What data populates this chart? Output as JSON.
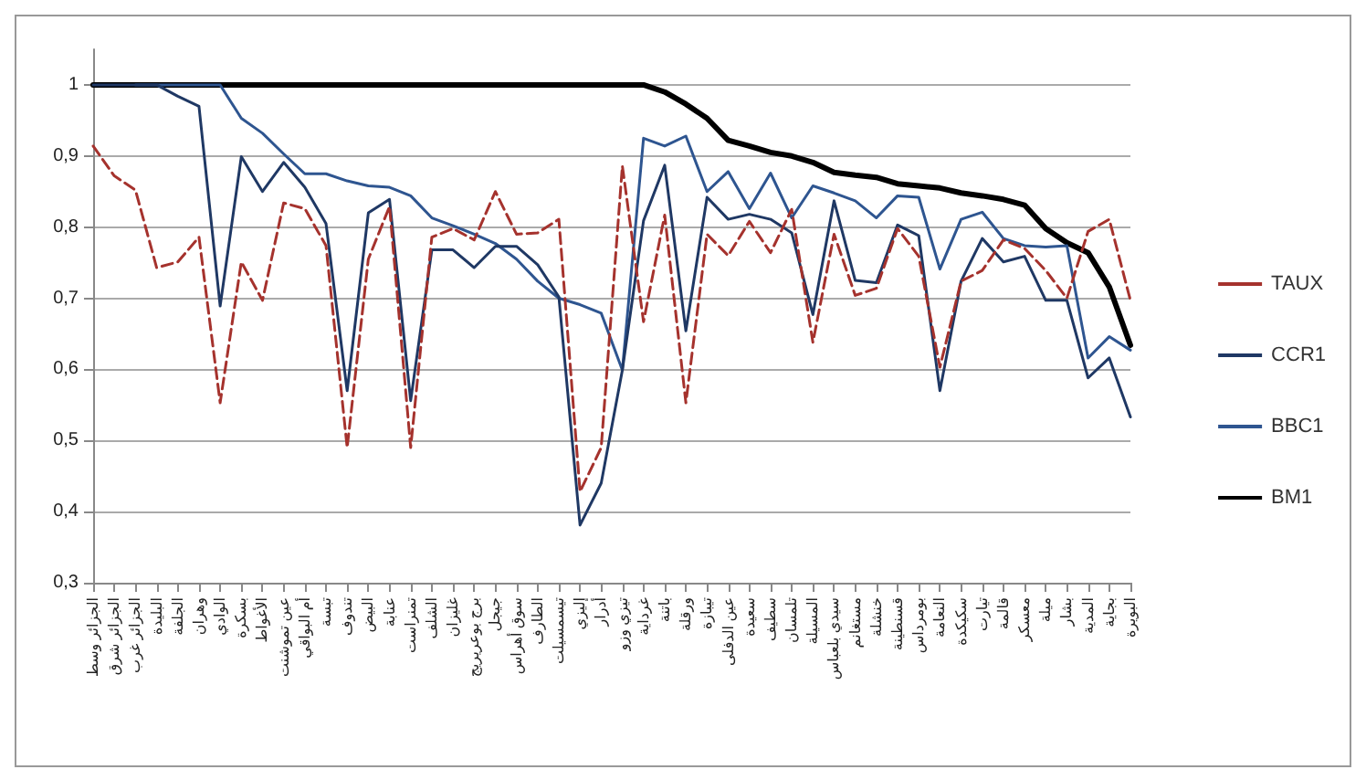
{
  "chart_data": {
    "type": "line",
    "categories": [
      "الجزائر وسط",
      "الجزائر شرق",
      "الجزائر غرب",
      "البليدة",
      "الجلفة",
      "وهران",
      "الوادي",
      "بسكرة",
      "الأغواط",
      "عين تموشنت",
      "أم البواقي",
      "تبسة",
      "تندوف",
      "البيض",
      "عنابة",
      "تمنراست",
      "الشلف",
      "غليزان",
      "برج بوعريريج",
      "جيجل",
      "سوق أهراس",
      "الطارف",
      "تيسمسيلت",
      "إليزي",
      "أدرار",
      "تيزي وزو",
      "غرداية",
      "باتنة",
      "ورقلة",
      "تيبازة",
      "عين الدفلى",
      "سعيدة",
      "سطيف",
      "تلمسان",
      "المسيلة",
      "سيدي بلعباس",
      "مستغانم",
      "خنشلة",
      "قسنطينة",
      "بومرداس",
      "النعامة",
      "سكيكدة",
      "تيارت",
      "قالمة",
      "معسكر",
      "ميلة",
      "بشار",
      "المدية",
      "بجاية",
      "البويرة"
    ],
    "series": [
      {
        "name": "TAUX",
        "color": "#a5322d",
        "line_style": "dashed",
        "values": [
          0.914,
          0.872,
          0.852,
          0.743,
          0.751,
          0.786,
          0.553,
          0.751,
          0.697,
          0.834,
          0.826,
          0.774,
          0.49,
          0.755,
          0.829,
          0.49,
          0.786,
          0.798,
          0.782,
          0.85,
          0.79,
          0.792,
          0.811,
          0.428,
          0.49,
          0.886,
          0.667,
          0.817,
          0.553,
          0.79,
          0.76,
          0.808,
          0.764,
          0.825,
          0.638,
          0.79,
          0.704,
          0.714,
          0.798,
          0.759,
          0.603,
          0.724,
          0.739,
          0.782,
          0.77,
          0.739,
          0.7,
          0.794,
          0.811,
          0.697
        ]
      },
      {
        "name": "CCR1",
        "color": "#1f3864",
        "values": [
          1,
          1,
          1,
          1,
          0.984,
          0.97,
          0.689,
          0.899,
          0.85,
          0.891,
          0.856,
          0.805,
          0.57,
          0.82,
          0.839,
          0.556,
          0.768,
          0.768,
          0.743,
          0.773,
          0.773,
          0.747,
          0.702,
          0.381,
          0.44,
          0.599,
          0.809,
          0.887,
          0.654,
          0.842,
          0.811,
          0.818,
          0.811,
          0.792,
          0.677,
          0.837,
          0.725,
          0.722,
          0.803,
          0.788,
          0.57,
          0.724,
          0.784,
          0.751,
          0.759,
          0.697,
          0.697,
          0.588,
          0.616,
          0.533
        ]
      },
      {
        "name": "BBC1",
        "color": "#2e5590",
        "values": [
          null,
          null,
          1,
          1,
          1,
          1,
          1,
          0.953,
          0.932,
          0.903,
          0.875,
          0.875,
          0.865,
          0.858,
          0.856,
          0.844,
          0.813,
          0.802,
          0.79,
          0.777,
          0.755,
          0.724,
          0.7,
          0.691,
          0.679,
          0.599,
          0.925,
          0.914,
          0.928,
          0.85,
          0.878,
          0.826,
          0.876,
          0.813,
          0.858,
          0.848,
          0.837,
          0.813,
          0.844,
          0.842,
          0.741,
          0.811,
          0.821,
          0.784,
          0.774,
          0.772,
          0.774,
          0.616,
          0.646,
          0.627
        ]
      },
      {
        "name": "BM1",
        "color": "#000000",
        "values": [
          1,
          1,
          1,
          1,
          1,
          1,
          1,
          1,
          1,
          1,
          1,
          1,
          1,
          1,
          1,
          1,
          1,
          1,
          1,
          1,
          1,
          1,
          1,
          1,
          1,
          1,
          1,
          0.99,
          0.973,
          0.953,
          0.922,
          0.914,
          0.905,
          0.9,
          0.891,
          0.877,
          0.873,
          0.87,
          0.861,
          0.858,
          0.855,
          0.848,
          0.844,
          0.839,
          0.831,
          0.798,
          0.778,
          0.764,
          0.716,
          0.634
        ]
      }
    ],
    "ylim": [
      0.3,
      1.05
    ],
    "yticks": [
      {
        "value": 0.3,
        "label": "0,3"
      },
      {
        "value": 0.4,
        "label": "0,4"
      },
      {
        "value": 0.5,
        "label": "0,5"
      },
      {
        "value": 0.6,
        "label": "0,6"
      },
      {
        "value": 0.7,
        "label": "0,7"
      },
      {
        "value": 0.8,
        "label": "0,8"
      },
      {
        "value": 0.9,
        "label": "0,9"
      },
      {
        "value": 1,
        "label": "1"
      }
    ],
    "grid": "y",
    "legend": "right",
    "marker": "none"
  }
}
